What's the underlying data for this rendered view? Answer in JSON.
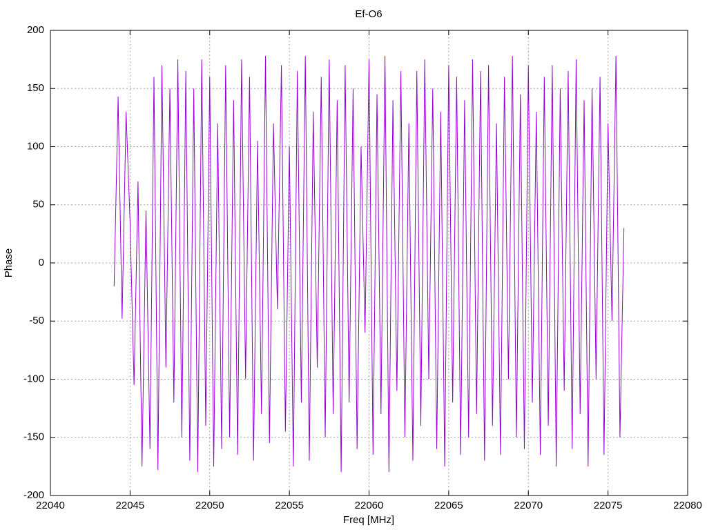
{
  "chart_data": {
    "type": "line",
    "title": "Ef-O6",
    "x_label": "Freq [MHz]",
    "y_label": "Phase",
    "x": [
      22044,
      22044.25,
      22044.5,
      22044.75,
      22045,
      22045.25,
      22045.5,
      22045.75,
      22046,
      22046.25,
      22046.5,
      22046.75,
      22047,
      22047.25,
      22047.5,
      22047.75,
      22048,
      22048.25,
      22048.5,
      22048.75,
      22049,
      22049.25,
      22049.5,
      22049.75,
      22050,
      22050.25,
      22050.5,
      22050.75,
      22051,
      22051.25,
      22051.5,
      22051.75,
      22052,
      22052.25,
      22052.5,
      22052.75,
      22053,
      22053.25,
      22053.5,
      22053.75,
      22054,
      22054.25,
      22054.5,
      22054.75,
      22055,
      22055.25,
      22055.5,
      22055.75,
      22056,
      22056.25,
      22056.5,
      22056.75,
      22057,
      22057.25,
      22057.5,
      22057.75,
      22058,
      22058.25,
      22058.5,
      22058.75,
      22059,
      22059.25,
      22059.5,
      22059.75,
      22060,
      22060.25,
      22060.5,
      22060.75,
      22061,
      22061.25,
      22061.5,
      22061.75,
      22062,
      22062.25,
      22062.5,
      22062.75,
      22063,
      22063.25,
      22063.5,
      22063.75,
      22064,
      22064.25,
      22064.5,
      22064.75,
      22065,
      22065.25,
      22065.5,
      22065.75,
      22066,
      22066.25,
      22066.5,
      22066.75,
      22067,
      22067.25,
      22067.5,
      22067.75,
      22068,
      22068.25,
      22068.5,
      22068.75,
      22069,
      22069.25,
      22069.5,
      22069.75,
      22070,
      22070.25,
      22070.5,
      22070.75,
      22071,
      22071.25,
      22071.5,
      22071.75,
      22072,
      22072.25,
      22072.5,
      22072.75,
      22073,
      22073.25,
      22073.5,
      22073.75,
      22074,
      22074.25,
      22074.5,
      22074.75,
      22075,
      22075.25,
      22075.5,
      22075.75,
      22076
    ],
    "series": [
      {
        "color": "#9400d3",
        "values": [
          -20,
          143,
          -48,
          130,
          35,
          -105,
          70,
          -175,
          45,
          -160,
          160,
          -178,
          170,
          -90,
          150,
          -120,
          175,
          -150,
          165,
          -170,
          150,
          -180,
          175,
          -140,
          160,
          -175,
          120,
          -160,
          170,
          -150,
          140,
          -165,
          175,
          -100,
          160,
          -170,
          105,
          -130,
          178,
          -155,
          120,
          -40,
          170,
          -145,
          100,
          -175,
          165,
          -120,
          178,
          -170,
          130,
          -90,
          160,
          -150,
          175,
          -130,
          140,
          -180,
          170,
          -120,
          150,
          -160,
          100,
          -60,
          175,
          -165,
          145,
          -130,
          178,
          -180,
          140,
          -110,
          165,
          -150,
          120,
          -170,
          165,
          -140,
          175,
          -100,
          150,
          -160,
          130,
          -175,
          170,
          -120,
          160,
          -165,
          140,
          -150,
          175,
          -130,
          165,
          -170,
          170,
          -140,
          120,
          -165,
          160,
          -100,
          178,
          -150,
          145,
          -160,
          170,
          -120,
          130,
          -165,
          160,
          -140,
          170,
          -175,
          150,
          -110,
          165,
          -160,
          175,
          -130,
          140,
          -175,
          150,
          -100,
          160,
          -165,
          120,
          -50,
          178,
          -150,
          30
        ]
      }
    ],
    "xlim": [
      22040,
      22080
    ],
    "ylim": [
      -200,
      200
    ],
    "xticks": [
      22040,
      22045,
      22050,
      22055,
      22060,
      22065,
      22070,
      22075,
      22080
    ],
    "yticks": [
      -200,
      -150,
      -100,
      -50,
      0,
      50,
      100,
      150,
      200
    ],
    "grid": true
  }
}
